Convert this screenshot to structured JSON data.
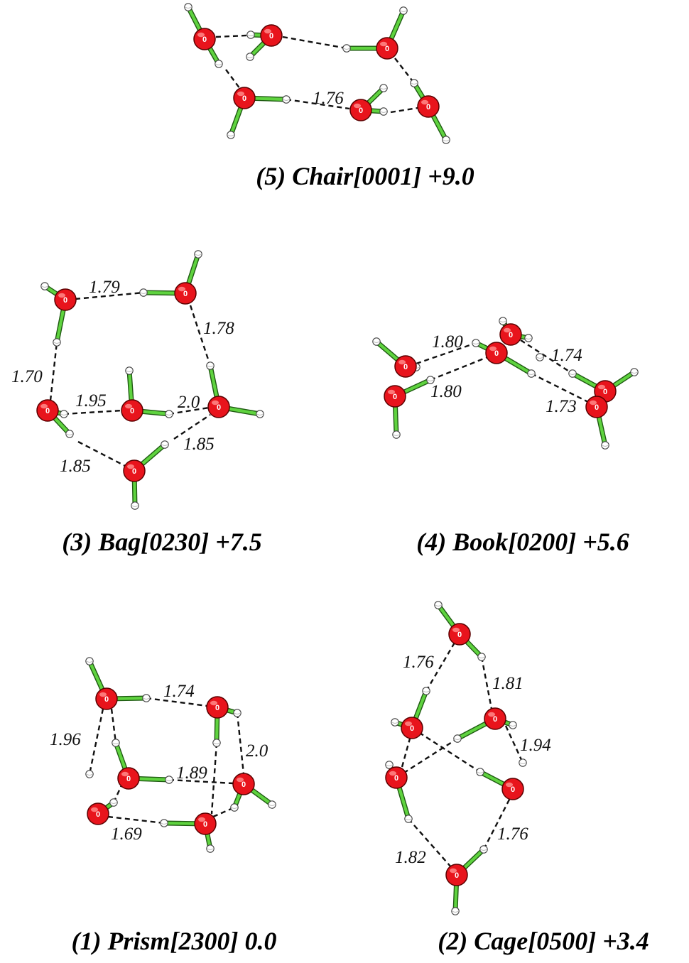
{
  "atom_label": "0",
  "colors": {
    "oxygen": "#e8141c",
    "hydrogen": "#ffffff",
    "covalent_bond": "#5fd33f",
    "hydrogen_bond": "#111111"
  },
  "panels": [
    {
      "id": "chair",
      "caption": "(5) Chair[0001] +9.0",
      "distances": [
        "1.76"
      ]
    },
    {
      "id": "bag",
      "caption": "(3) Bag[0230] +7.5",
      "distances": [
        "1.79",
        "1.78",
        "1.70",
        "1.95",
        "2.0",
        "1.85",
        "1.85"
      ]
    },
    {
      "id": "book",
      "caption": "(4) Book[0200] +5.6",
      "distances": [
        "1.80",
        "1.74",
        "1.80",
        "1.73"
      ]
    },
    {
      "id": "prism",
      "caption": "(1) Prism[2300] 0.0",
      "distances": [
        "1.74",
        "1.96",
        "2.0",
        "1.89",
        "1.69"
      ]
    },
    {
      "id": "cage",
      "caption": "(2) Cage[0500] +3.4",
      "distances": [
        "1.76",
        "1.81",
        "1.94",
        "1.76",
        "1.82"
      ]
    }
  ]
}
